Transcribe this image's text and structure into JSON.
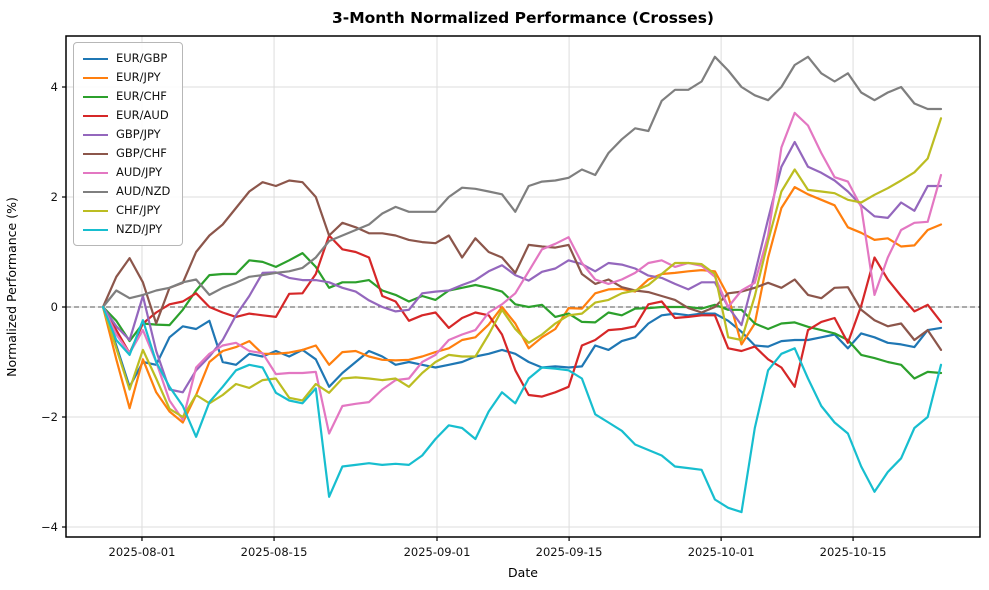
{
  "chart_data": {
    "type": "line",
    "title": "3-Month Normalized Performance (Crosses)",
    "xlabel": "Date",
    "ylabel": "Normalized Performance (%)",
    "legend_position": "upper left",
    "grid": true,
    "zero_line_dashed": true,
    "background_color": "#ffffff",
    "n_points": 64,
    "ylim": [
      -4.18,
      4.93
    ],
    "y_ticks": [
      {
        "label": "−4",
        "value": -4
      },
      {
        "label": "−2",
        "value": -2
      },
      {
        "label": "0",
        "value": 0
      },
      {
        "label": "2",
        "value": 2
      },
      {
        "label": "4",
        "value": 4
      }
    ],
    "x_ticks": [
      {
        "label": "2025-08-01",
        "pos": 2.93
      },
      {
        "label": "2025-08-15",
        "pos": 12.86
      },
      {
        "label": "2025-09-01",
        "pos": 25.11
      },
      {
        "label": "2025-09-15",
        "pos": 35.04
      },
      {
        "label": "2025-10-01",
        "pos": 46.47
      },
      {
        "label": "2025-10-15",
        "pos": 56.39
      }
    ],
    "x_range": [
      "2025-07-29",
      "2025-10-24"
    ],
    "series": [
      {
        "name": "EUR/GBP",
        "color": "#1f77b4",
        "values": [
          0,
          -0.7,
          -1.45,
          -1.0,
          -1.05,
          -0.55,
          -0.35,
          -0.4,
          -0.25,
          -1.0,
          -1.05,
          -0.85,
          -0.9,
          -0.8,
          -0.9,
          -0.78,
          -0.95,
          -1.45,
          -1.2,
          -1.0,
          -0.8,
          -0.9,
          -1.05,
          -1.0,
          -1.05,
          -1.1,
          -1.05,
          -1.0,
          -0.9,
          -0.85,
          -0.78,
          -0.85,
          -1.0,
          -1.1,
          -1.08,
          -1.1,
          -1.08,
          -0.7,
          -0.78,
          -0.62,
          -0.55,
          -0.3,
          -0.15,
          -0.12,
          -0.15,
          -0.12,
          -0.12,
          -0.25,
          -0.45,
          -0.7,
          -0.72,
          -0.62,
          -0.6,
          -0.6,
          -0.55,
          -0.5,
          -0.75,
          -0.48,
          -0.55,
          -0.65,
          -0.68,
          -0.73,
          -0.42,
          -0.38
        ]
      },
      {
        "name": "EUR/JPY",
        "color": "#ff7f0e",
        "values": [
          0,
          -0.95,
          -1.84,
          -0.95,
          -1.55,
          -1.9,
          -2.1,
          -1.6,
          -1.0,
          -0.8,
          -0.73,
          -0.62,
          -0.85,
          -0.85,
          -0.83,
          -0.78,
          -0.7,
          -1.05,
          -0.82,
          -0.8,
          -0.9,
          -0.96,
          -0.97,
          -0.96,
          -0.9,
          -0.82,
          -0.75,
          -0.6,
          -0.55,
          -0.32,
          0.0,
          -0.3,
          -0.75,
          -0.55,
          -0.4,
          -0.02,
          -0.03,
          0.25,
          0.32,
          0.33,
          0.28,
          0.5,
          0.6,
          0.62,
          0.65,
          0.67,
          0.65,
          0.2,
          -0.68,
          -0.3,
          0.9,
          1.8,
          2.18,
          2.05,
          1.95,
          1.85,
          1.45,
          1.35,
          1.22,
          1.25,
          1.1,
          1.12,
          1.4,
          1.5
        ]
      },
      {
        "name": "EUR/CHF",
        "color": "#2ca02c",
        "values": [
          0,
          -0.25,
          -0.62,
          -0.3,
          -0.32,
          -0.33,
          -0.05,
          0.3,
          0.58,
          0.6,
          0.6,
          0.85,
          0.82,
          0.73,
          0.85,
          0.98,
          0.73,
          0.35,
          0.45,
          0.45,
          0.49,
          0.3,
          0.22,
          0.1,
          0.2,
          0.13,
          0.3,
          0.35,
          0.4,
          0.35,
          0.28,
          0.05,
          0.0,
          0.04,
          -0.18,
          -0.12,
          -0.27,
          -0.28,
          -0.1,
          -0.15,
          -0.03,
          -0.02,
          0.0,
          0.0,
          0.0,
          -0.03,
          0.04,
          -0.05,
          -0.05,
          -0.3,
          -0.4,
          -0.3,
          -0.28,
          -0.36,
          -0.42,
          -0.48,
          -0.6,
          -0.87,
          -0.93,
          -1.0,
          -1.05,
          -1.3,
          -1.18,
          -1.2
        ]
      },
      {
        "name": "EUR/AUD",
        "color": "#d62728",
        "values": [
          0,
          -0.42,
          -0.84,
          -0.3,
          -0.1,
          0.05,
          0.1,
          0.25,
          0.0,
          -0.1,
          -0.18,
          -0.12,
          -0.15,
          -0.18,
          0.24,
          0.25,
          0.6,
          1.3,
          1.05,
          1.0,
          0.9,
          0.2,
          0.1,
          -0.25,
          -0.15,
          -0.1,
          -0.38,
          -0.2,
          -0.1,
          -0.15,
          -0.5,
          -1.15,
          -1.6,
          -1.63,
          -1.55,
          -1.45,
          -0.7,
          -0.6,
          -0.42,
          -0.4,
          -0.35,
          0.05,
          0.1,
          -0.2,
          -0.18,
          -0.15,
          -0.15,
          -0.75,
          -0.8,
          -0.72,
          -0.95,
          -1.1,
          -1.45,
          -0.42,
          -0.27,
          -0.2,
          -0.65,
          0.02,
          0.9,
          0.5,
          0.2,
          -0.08,
          0.04,
          -0.27
        ]
      },
      {
        "name": "GBP/JPY",
        "color": "#9467bd",
        "values": [
          0,
          -0.35,
          -0.6,
          0.2,
          -0.8,
          -1.5,
          -1.55,
          -1.15,
          -0.9,
          -0.6,
          -0.15,
          0.2,
          0.62,
          0.63,
          0.53,
          0.49,
          0.49,
          0.45,
          0.35,
          0.28,
          0.12,
          0.0,
          -0.08,
          -0.05,
          0.25,
          0.28,
          0.3,
          0.4,
          0.49,
          0.65,
          0.76,
          0.58,
          0.48,
          0.64,
          0.7,
          0.85,
          0.78,
          0.65,
          0.8,
          0.77,
          0.7,
          0.57,
          0.53,
          0.42,
          0.32,
          0.45,
          0.45,
          0.0,
          -0.33,
          0.6,
          1.6,
          2.55,
          3.0,
          2.55,
          2.44,
          2.3,
          2.1,
          1.85,
          1.65,
          1.62,
          1.9,
          1.75,
          2.2,
          2.2
        ]
      },
      {
        "name": "GBP/CHF",
        "color": "#8c564b",
        "values": [
          0,
          0.55,
          0.89,
          0.45,
          -0.3,
          0.35,
          0.44,
          1.0,
          1.3,
          1.5,
          1.8,
          2.1,
          2.27,
          2.2,
          2.3,
          2.27,
          2.0,
          1.3,
          1.53,
          1.45,
          1.34,
          1.34,
          1.3,
          1.22,
          1.18,
          1.16,
          1.3,
          0.9,
          1.25,
          1.0,
          0.9,
          0.62,
          1.13,
          1.1,
          1.08,
          1.13,
          0.6,
          0.42,
          0.5,
          0.36,
          0.3,
          0.27,
          0.2,
          0.13,
          -0.02,
          -0.1,
          0.0,
          0.25,
          0.28,
          0.35,
          0.44,
          0.35,
          0.5,
          0.22,
          0.16,
          0.35,
          0.36,
          -0.05,
          -0.24,
          -0.35,
          -0.3,
          -0.6,
          -0.42,
          -0.78
        ]
      },
      {
        "name": "AUD/JPY",
        "color": "#e377c2",
        "values": [
          0,
          -0.5,
          -0.84,
          -0.42,
          -1.0,
          -1.7,
          -2.05,
          -1.1,
          -0.85,
          -0.7,
          -0.65,
          -0.8,
          -0.84,
          -1.22,
          -1.2,
          -1.2,
          -1.18,
          -2.3,
          -1.8,
          -1.76,
          -1.73,
          -1.5,
          -1.33,
          -1.3,
          -1.0,
          -0.87,
          -0.6,
          -0.5,
          -0.42,
          -0.1,
          0.05,
          0.25,
          0.65,
          1.05,
          1.15,
          1.27,
          0.8,
          0.5,
          0.42,
          0.5,
          0.62,
          0.8,
          0.85,
          0.73,
          0.8,
          0.75,
          0.55,
          0.0,
          0.3,
          0.44,
          1.3,
          2.9,
          3.53,
          3.3,
          2.8,
          2.36,
          2.28,
          1.82,
          0.22,
          0.9,
          1.4,
          1.53,
          1.55,
          2.4
        ]
      },
      {
        "name": "AUD/NZD",
        "color": "#7f7f7f",
        "values": [
          0,
          0.3,
          0.16,
          0.22,
          0.3,
          0.35,
          0.45,
          0.5,
          0.22,
          0.35,
          0.44,
          0.55,
          0.58,
          0.62,
          0.65,
          0.71,
          0.9,
          1.2,
          1.3,
          1.4,
          1.5,
          1.7,
          1.82,
          1.73,
          1.73,
          1.73,
          2.0,
          2.17,
          2.15,
          2.1,
          2.05,
          1.73,
          2.2,
          2.28,
          2.3,
          2.35,
          2.5,
          2.4,
          2.8,
          3.05,
          3.25,
          3.2,
          3.75,
          3.95,
          3.95,
          4.1,
          4.55,
          4.3,
          4.0,
          3.85,
          3.76,
          4.0,
          4.4,
          4.55,
          4.25,
          4.1,
          4.25,
          3.9,
          3.76,
          3.9,
          4.0,
          3.7,
          3.6,
          3.6
        ]
      },
      {
        "name": "CHF/JPY",
        "color": "#bcbd22",
        "values": [
          0,
          -0.75,
          -1.5,
          -0.78,
          -1.3,
          -1.85,
          -2.0,
          -1.6,
          -1.75,
          -1.6,
          -1.4,
          -1.47,
          -1.33,
          -1.3,
          -1.65,
          -1.7,
          -1.4,
          -1.56,
          -1.3,
          -1.28,
          -1.3,
          -1.33,
          -1.3,
          -1.45,
          -1.2,
          -1.0,
          -0.87,
          -0.9,
          -0.9,
          -0.5,
          -0.05,
          -0.4,
          -0.65,
          -0.5,
          -0.3,
          -0.15,
          -0.12,
          0.08,
          0.13,
          0.25,
          0.3,
          0.4,
          0.6,
          0.8,
          0.8,
          0.78,
          0.6,
          -0.55,
          -0.6,
          0.2,
          1.2,
          2.1,
          2.5,
          2.13,
          2.1,
          2.07,
          1.95,
          1.9,
          2.04,
          2.16,
          2.3,
          2.45,
          2.7,
          3.43
        ]
      },
      {
        "name": "NZD/JPY",
        "color": "#17becf",
        "values": [
          0,
          -0.6,
          -0.87,
          -0.24,
          -1.0,
          -1.45,
          -1.8,
          -2.36,
          -1.73,
          -1.45,
          -1.15,
          -1.05,
          -1.1,
          -1.56,
          -1.7,
          -1.75,
          -1.48,
          -3.45,
          -2.9,
          -2.87,
          -2.84,
          -2.87,
          -2.85,
          -2.87,
          -2.7,
          -2.4,
          -2.15,
          -2.2,
          -2.4,
          -1.9,
          -1.55,
          -1.75,
          -1.3,
          -1.1,
          -1.12,
          -1.15,
          -1.3,
          -1.95,
          -2.1,
          -2.25,
          -2.5,
          -2.6,
          -2.7,
          -2.9,
          -2.93,
          -2.96,
          -3.5,
          -3.65,
          -3.73,
          -2.2,
          -1.15,
          -0.85,
          -0.75,
          -1.3,
          -1.8,
          -2.1,
          -2.3,
          -2.9,
          -3.36,
          -3.0,
          -2.75,
          -2.2,
          -2.0,
          -1.05
        ]
      }
    ]
  }
}
